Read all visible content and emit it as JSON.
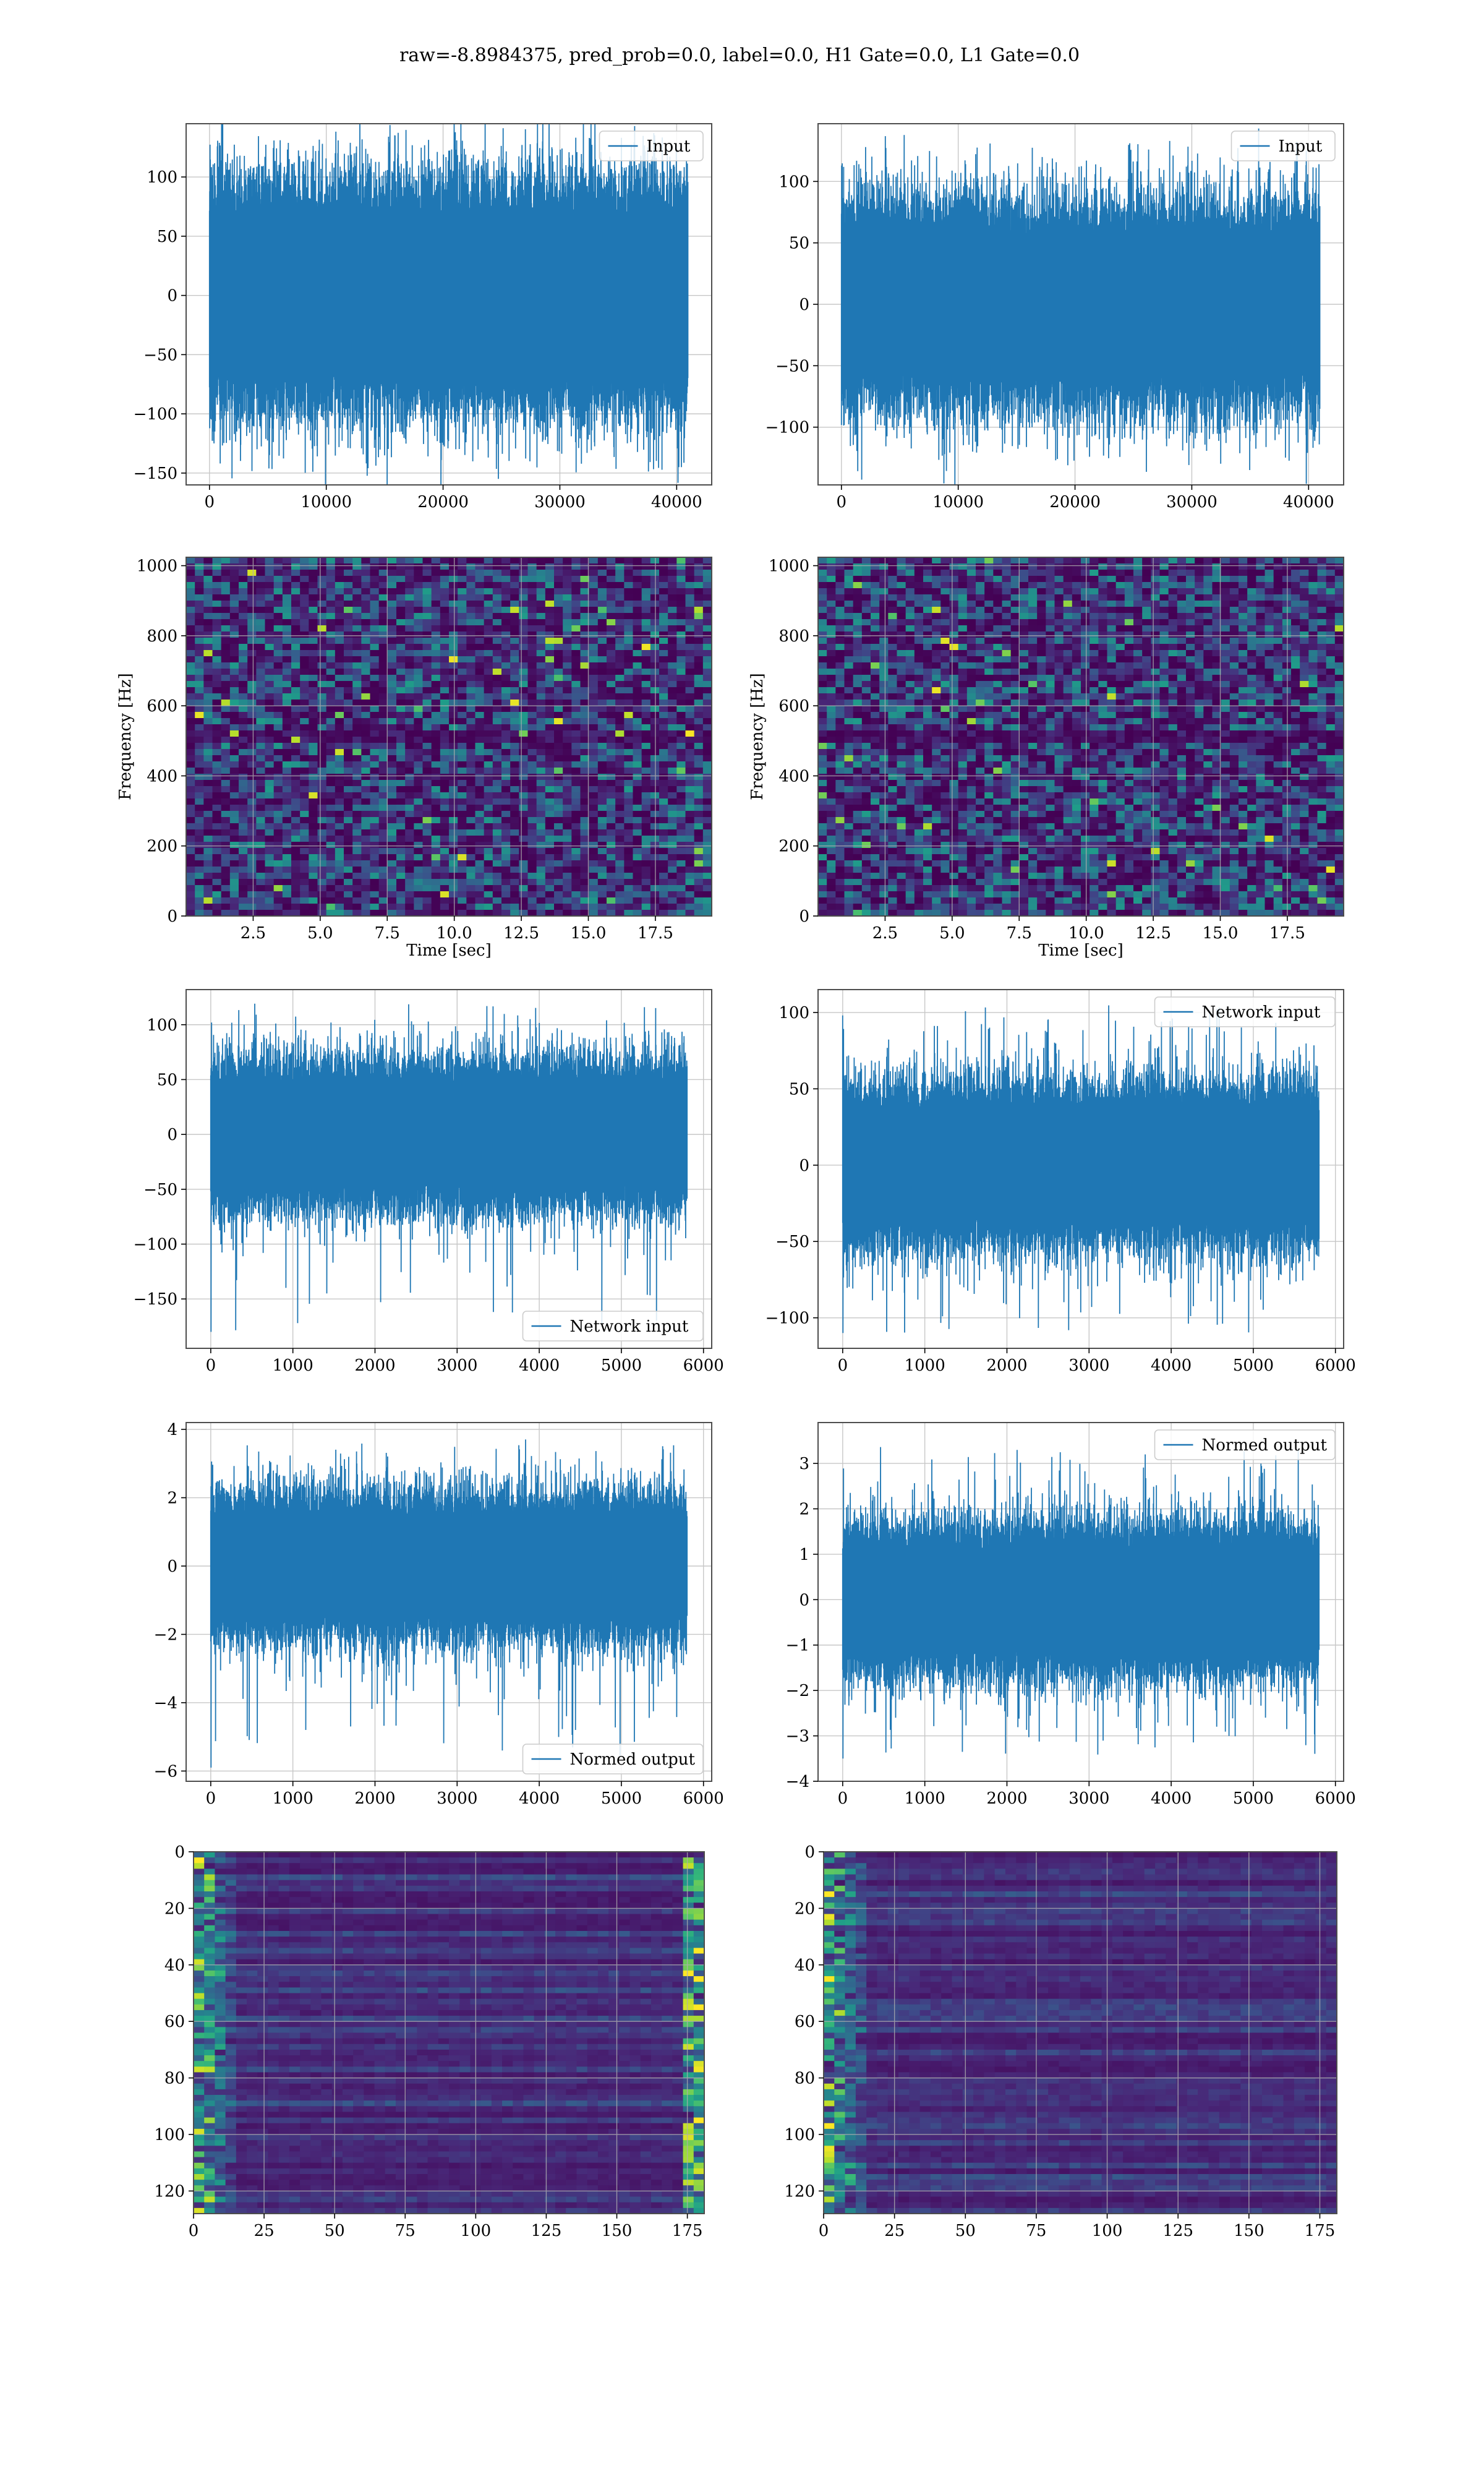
{
  "suptitle": "raw=-8.8984375, pred_prob=0.0, label=0.0, H1 Gate=0.0, L1 Gate=0.0",
  "colors": {
    "series": "#1f77b4",
    "grid": "#b0b0b0",
    "frame": "#4d4d4d",
    "colormap": "viridis"
  },
  "chart_data": [
    {
      "type": "line",
      "panel": "row1-left",
      "series": [
        {
          "name": "Input",
          "n_points": 40960,
          "envelope_y": [
            -150,
            135
          ],
          "body_y": [
            -65,
            65
          ]
        }
      ],
      "x": {
        "lim": [
          -2000,
          43000
        ],
        "ticks": [
          0,
          10000,
          20000,
          30000,
          40000
        ],
        "labels": [
          "0",
          "10000",
          "20000",
          "30000",
          "40000"
        ]
      },
      "y": {
        "lim": [
          -160,
          145
        ],
        "ticks": [
          -150,
          -100,
          -50,
          0,
          50,
          100
        ],
        "labels": [
          "−150",
          "−100",
          "−50",
          "0",
          "50",
          "100"
        ]
      },
      "grid": true,
      "legend": "top-right"
    },
    {
      "type": "line",
      "panel": "row1-right",
      "series": [
        {
          "name": "Input",
          "n_points": 40960,
          "envelope_y": [
            -135,
            135
          ],
          "body_y": [
            -55,
            55
          ]
        }
      ],
      "x": {
        "lim": [
          -2000,
          43000
        ],
        "ticks": [
          0,
          10000,
          20000,
          30000,
          40000
        ],
        "labels": [
          "0",
          "10000",
          "20000",
          "30000",
          "40000"
        ]
      },
      "y": {
        "lim": [
          -147,
          147
        ],
        "ticks": [
          -100,
          -50,
          0,
          50,
          100
        ],
        "labels": [
          "−100",
          "−50",
          "0",
          "50",
          "100"
        ]
      },
      "grid": true,
      "legend": "top-right"
    },
    {
      "type": "heatmap",
      "panel": "row2-left",
      "x": {
        "lim": [
          0,
          19.6
        ],
        "ticks": [
          2.5,
          5.0,
          7.5,
          10.0,
          12.5,
          15.0,
          17.5
        ],
        "labels": [
          "2.5",
          "5.0",
          "7.5",
          "10.0",
          "12.5",
          "15.0",
          "17.5"
        ]
      },
      "y": {
        "lim": [
          0,
          1024
        ],
        "ticks": [
          0,
          200,
          400,
          600,
          800,
          1000
        ],
        "labels": [
          "0",
          "200",
          "400",
          "600",
          "800",
          "1000"
        ]
      },
      "xlabel": "Time [sec]",
      "ylabel": "Frequency [Hz]",
      "grid": true,
      "colormap": "viridis"
    },
    {
      "type": "heatmap",
      "panel": "row2-right",
      "x": {
        "lim": [
          0,
          19.6
        ],
        "ticks": [
          2.5,
          5.0,
          7.5,
          10.0,
          12.5,
          15.0,
          17.5
        ],
        "labels": [
          "2.5",
          "5.0",
          "7.5",
          "10.0",
          "12.5",
          "15.0",
          "17.5"
        ]
      },
      "y": {
        "lim": [
          0,
          1024
        ],
        "ticks": [
          0,
          200,
          400,
          600,
          800,
          1000
        ],
        "labels": [
          "0",
          "200",
          "400",
          "600",
          "800",
          "1000"
        ]
      },
      "xlabel": "Time [sec]",
      "ylabel": "Frequency [Hz]",
      "grid": true,
      "colormap": "viridis"
    },
    {
      "type": "line",
      "panel": "row3-left",
      "series": [
        {
          "name": "Network input",
          "n_points": 5800,
          "envelope_y": [
            -180,
            120
          ],
          "body_y": [
            -45,
            45
          ]
        }
      ],
      "x": {
        "lim": [
          -300,
          6100
        ],
        "ticks": [
          0,
          1000,
          2000,
          3000,
          4000,
          5000,
          6000
        ],
        "labels": [
          "0",
          "1000",
          "2000",
          "3000",
          "4000",
          "5000",
          "6000"
        ]
      },
      "y": {
        "lim": [
          -195,
          132
        ],
        "ticks": [
          -150,
          -100,
          -50,
          0,
          50,
          100
        ],
        "labels": [
          "−150",
          "−100",
          "−50",
          "0",
          "50",
          "100"
        ]
      },
      "grid": true,
      "legend": "bottom-right"
    },
    {
      "type": "line",
      "panel": "row3-right",
      "series": [
        {
          "name": "Network input",
          "n_points": 5800,
          "envelope_y": [
            -110,
            105
          ],
          "body_y": [
            -35,
            35
          ]
        }
      ],
      "x": {
        "lim": [
          -300,
          6100
        ],
        "ticks": [
          0,
          1000,
          2000,
          3000,
          4000,
          5000,
          6000
        ],
        "labels": [
          "0",
          "1000",
          "2000",
          "3000",
          "4000",
          "5000",
          "6000"
        ]
      },
      "y": {
        "lim": [
          -120,
          115
        ],
        "ticks": [
          -100,
          -50,
          0,
          50,
          100
        ],
        "labels": [
          "−100",
          "−50",
          "0",
          "50",
          "100"
        ]
      },
      "grid": true,
      "legend": "top-right"
    },
    {
      "type": "line",
      "panel": "row4-left",
      "series": [
        {
          "name": "Normed output",
          "n_points": 5800,
          "envelope_y": [
            -5.9,
            3.6
          ],
          "body_y": [
            -1.4,
            1.4
          ]
        }
      ],
      "x": {
        "lim": [
          -300,
          6100
        ],
        "ticks": [
          0,
          1000,
          2000,
          3000,
          4000,
          5000,
          6000
        ],
        "labels": [
          "0",
          "1000",
          "2000",
          "3000",
          "4000",
          "5000",
          "6000"
        ]
      },
      "y": {
        "lim": [
          -6.3,
          4.2
        ],
        "ticks": [
          -6,
          -4,
          -2,
          0,
          2,
          4
        ],
        "labels": [
          "−6",
          "−4",
          "−2",
          "0",
          "2",
          "4"
        ]
      },
      "grid": true,
      "legend": "bottom-right"
    },
    {
      "type": "line",
      "panel": "row4-right",
      "series": [
        {
          "name": "Normed output",
          "n_points": 5800,
          "envelope_y": [
            -3.5,
            3.4
          ],
          "body_y": [
            -1.1,
            1.1
          ]
        }
      ],
      "x": {
        "lim": [
          -300,
          6100
        ],
        "ticks": [
          0,
          1000,
          2000,
          3000,
          4000,
          5000,
          6000
        ],
        "labels": [
          "0",
          "1000",
          "2000",
          "3000",
          "4000",
          "5000",
          "6000"
        ]
      },
      "y": {
        "lim": [
          -4.0,
          3.9
        ],
        "ticks": [
          -4,
          -3,
          -2,
          -1,
          0,
          1,
          2,
          3
        ],
        "labels": [
          "−4",
          "−3",
          "−2",
          "−1",
          "0",
          "1",
          "2",
          "3"
        ]
      },
      "grid": true,
      "legend": "top-right"
    },
    {
      "type": "heatmap",
      "panel": "row5-left",
      "x": {
        "lim": [
          0,
          181
        ],
        "ticks": [
          0,
          25,
          50,
          75,
          100,
          125,
          150,
          175
        ],
        "labels": [
          "0",
          "25",
          "50",
          "75",
          "100",
          "125",
          "150",
          "175"
        ]
      },
      "y": {
        "lim": [
          128,
          0
        ],
        "ticks": [
          0,
          20,
          40,
          60,
          80,
          100,
          120
        ],
        "labels": [
          "0",
          "20",
          "40",
          "60",
          "80",
          "100",
          "120"
        ]
      },
      "grid": true,
      "colormap": "viridis",
      "bright_edges": [
        "left",
        "right"
      ]
    },
    {
      "type": "heatmap",
      "panel": "row5-right",
      "x": {
        "lim": [
          0,
          181
        ],
        "ticks": [
          0,
          25,
          50,
          75,
          100,
          125,
          150,
          175
        ],
        "labels": [
          "0",
          "25",
          "50",
          "75",
          "100",
          "125",
          "150",
          "175"
        ]
      },
      "y": {
        "lim": [
          128,
          0
        ],
        "ticks": [
          0,
          20,
          40,
          60,
          80,
          100,
          120
        ],
        "labels": [
          "0",
          "20",
          "40",
          "60",
          "80",
          "100",
          "120"
        ]
      },
      "grid": true,
      "colormap": "viridis",
      "bright_edges": [
        "left"
      ]
    }
  ]
}
